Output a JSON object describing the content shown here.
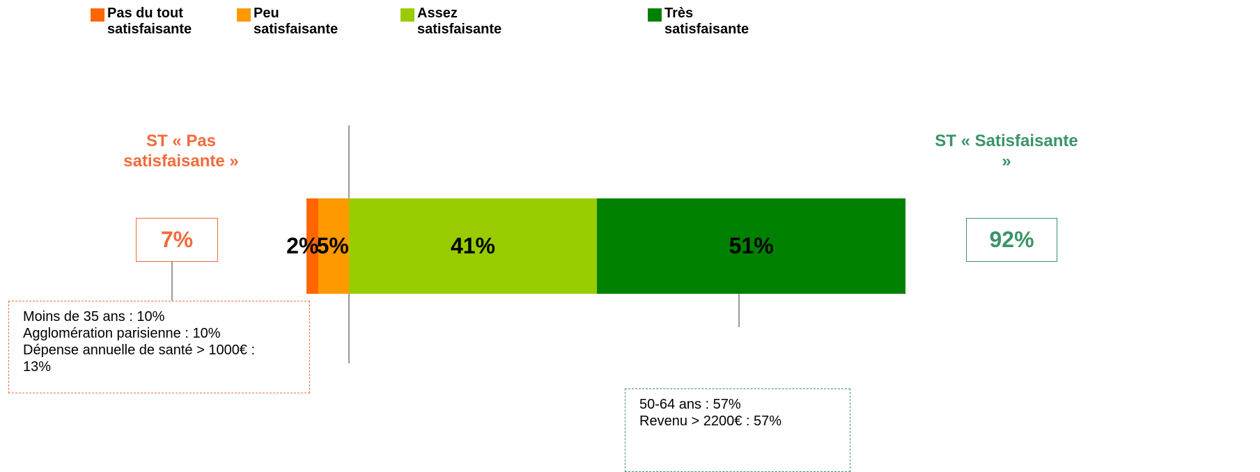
{
  "chart_data": {
    "type": "stacked_bar",
    "series": [
      {
        "name": "Pas du tout satisfaisante",
        "color": "#ff6600",
        "values": [
          2
        ],
        "value_labels": [
          "2%"
        ]
      },
      {
        "name": "Peu satisfaisante",
        "color": "#ff9900",
        "values": [
          5
        ],
        "value_labels": [
          "5%"
        ]
      },
      {
        "name": "Assez satisfaisante",
        "color": "#99cc00",
        "values": [
          41
        ],
        "value_labels": [
          "41%"
        ]
      },
      {
        "name": "Très satisfaisante",
        "color": "#008000",
        "values": [
          51
        ],
        "value_labels": [
          "51%"
        ]
      }
    ],
    "subtotals": [
      {
        "title": "ST « Pas satisfaisante »",
        "value": 7,
        "value_label": "7%",
        "color": "#f26b3a"
      },
      {
        "title": "ST « Satisfaisante »",
        "value": 92,
        "value_label": "92%",
        "color": "#3a9467"
      }
    ],
    "callouts": [
      {
        "lines": [
          "Moins de 35 ans : 10%",
          "Agglomération parisienne : 10%",
          "Dépense annuelle de santé > 1000€ : 13%"
        ],
        "color": "#f26b3a"
      },
      {
        "lines": [
          "50-64 ans : 57%",
          "Revenu > 2200€ : 57%"
        ],
        "color": "#3a9467"
      }
    ]
  }
}
